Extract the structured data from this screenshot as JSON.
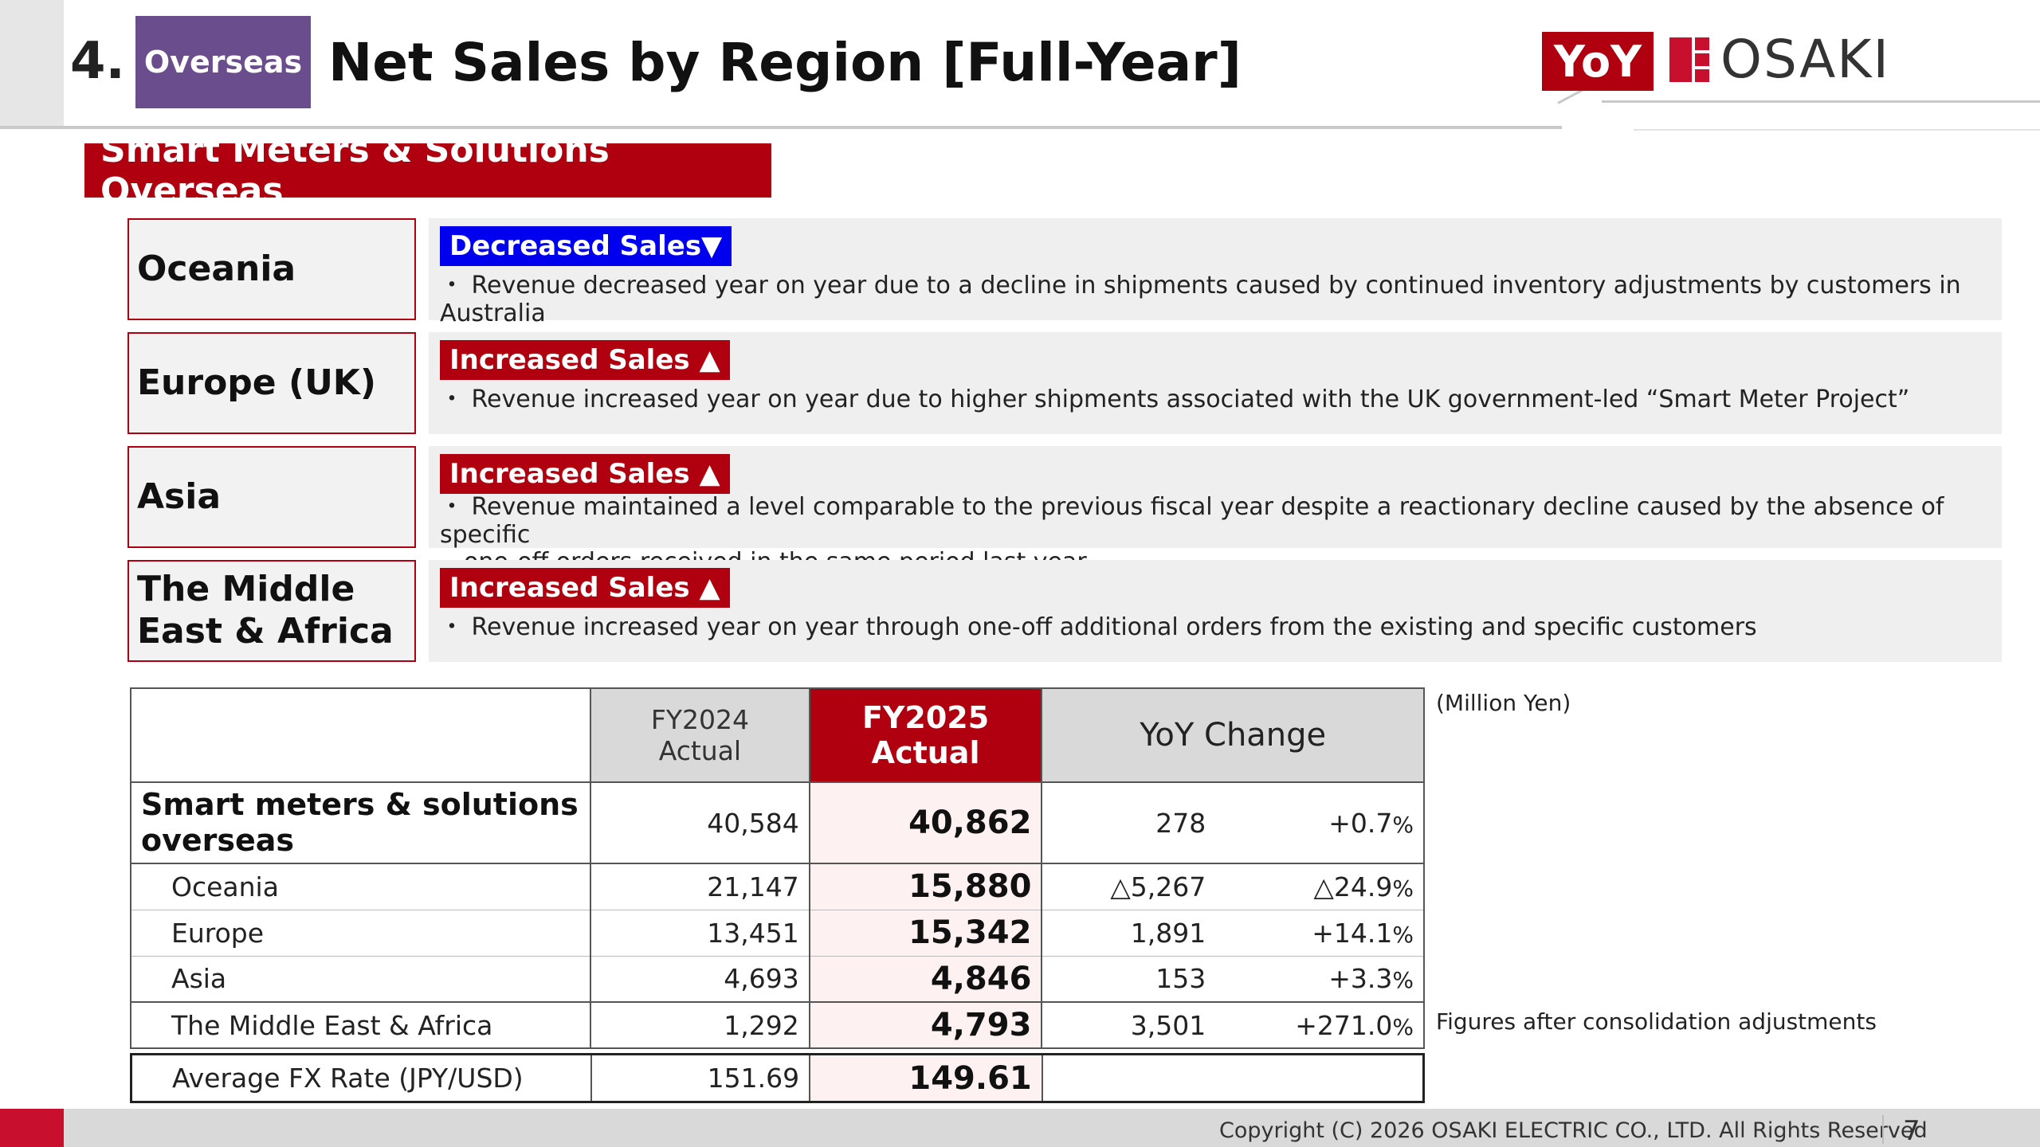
{
  "header": {
    "number": "4.",
    "tag": "Overseas",
    "title": "Net Sales by Region [Full-Year]",
    "badge": "YoY",
    "logo_text": "OSAKI"
  },
  "section": {
    "title": "Smart Meters & Solutions Overseas"
  },
  "regions": [
    {
      "name": "Oceania",
      "status": "Decreased Sales▼",
      "trend": "decrease",
      "desc_lines": [
        "・ Revenue decreased year on year due to a decline in shipments caused by continued inventory adjustments by customers in Australia"
      ]
    },
    {
      "name": "Europe (UK)",
      "status": "Increased Sales ▲",
      "trend": "increase",
      "desc_lines": [
        "・ Revenue increased year on year due to higher shipments associated with the UK government-led “Smart Meter Project”"
      ]
    },
    {
      "name": "Asia",
      "status": "Increased Sales ▲",
      "trend": "increase",
      "desc_lines": [
        "・ Revenue maintained a level comparable to the previous fiscal year despite a reactionary decline caused by the absence of specific",
        "one-off orders received in the same period last year"
      ]
    },
    {
      "name_lines": [
        "The Middle",
        "East & Africa"
      ],
      "status": "Increased Sales ▲",
      "trend": "increase",
      "desc_lines": [
        "・ Revenue increased year on year through one-off additional orders from the existing and specific customers"
      ]
    }
  ],
  "table": {
    "headers": {
      "fy2024_line1": "FY2024",
      "fy2024_line2": "Actual",
      "fy2025_line1": "FY2025",
      "fy2025_line2": "Actual",
      "yoy": "YoY Change"
    },
    "total": {
      "label_line1": "Smart meters & solutions",
      "label_line2": "overseas",
      "fy2024": "40,584",
      "fy2025": "40,862",
      "change": "278",
      "pct_num": "+0.7",
      "pct_sign": "%"
    },
    "rows": [
      {
        "label": "Oceania",
        "fy2024": "21,147",
        "fy2025": "15,880",
        "change": "△5,267",
        "pct_num": "△24.9",
        "pct_sign": "%"
      },
      {
        "label": "Europe",
        "fy2024": "13,451",
        "fy2025": "15,342",
        "change": "1,891",
        "pct_num": "+14.1",
        "pct_sign": "%"
      },
      {
        "label": "Asia",
        "fy2024": "4,693",
        "fy2025": "4,846",
        "change": "153",
        "pct_num": "+3.3",
        "pct_sign": "%"
      },
      {
        "label": "The Middle East & Africa",
        "fy2024": "1,292",
        "fy2025": "4,793",
        "change": "3,501",
        "pct_num": "+271.0",
        "pct_sign": "%"
      }
    ],
    "fx": {
      "label": "Average FX Rate (JPY/USD)",
      "fy2024": "151.69",
      "fy2025": "149.61"
    },
    "unit_note": "(Million Yen)",
    "consolidation_note": "Figures after consolidation adjustments"
  },
  "footer": {
    "copyright": "Copyright (C) 2026 OSAKI ELECTRIC CO., LTD. All Rights Reserved",
    "page": "7"
  },
  "colors": {
    "brand_red": "#b00010",
    "decrease_blue": "#0000ee",
    "tag_purple": "#6a4d8c"
  }
}
